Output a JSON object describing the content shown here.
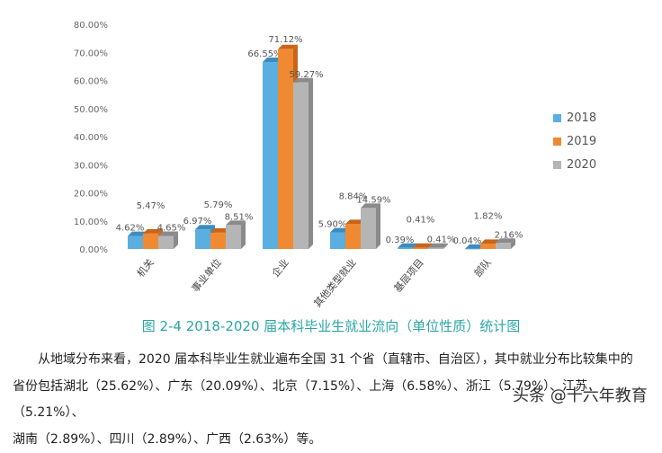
{
  "chart_data": {
    "type": "bar",
    "categories": [
      "机关",
      "事业单位",
      "企业",
      "其他类型就业",
      "基层项目",
      "部队"
    ],
    "series": [
      {
        "name": "2018",
        "color": "#5aaee0",
        "values": [
          4.62,
          6.97,
          66.55,
          5.9,
          0.39,
          0.04
        ]
      },
      {
        "name": "2019",
        "color": "#f08a32",
        "values": [
          5.47,
          5.79,
          71.12,
          8.84,
          0.41,
          1.82
        ]
      },
      {
        "name": "2020",
        "color": "#b5b5b5",
        "values": [
          4.65,
          8.51,
          59.27,
          14.59,
          0.41,
          2.16
        ]
      }
    ],
    "data_labels": [
      [
        "4.62%",
        "6.97%",
        "66.55%",
        "5.90%",
        "0.39%",
        "0.04%"
      ],
      [
        "5.47%",
        "5.79%",
        "71.12%",
        "8.84%",
        "0.41%",
        "1.82%"
      ],
      [
        "4.65%",
        "8.51%",
        "59.27%",
        "14.59%",
        "0.41%",
        "2.16%"
      ]
    ],
    "yticks": [
      "0.00%",
      "10.00%",
      "20.00%",
      "30.00%",
      "40.00%",
      "50.00%",
      "60.00%",
      "70.00%",
      "80.00%"
    ],
    "ylim": [
      0,
      80
    ],
    "grid": false,
    "legend": "right",
    "style": "3d-clustered-column"
  },
  "caption": "图 2-4   2018-2020 届本科毕业生就业流向（单位性质）统计图",
  "paragraph": {
    "line1": "从地域分布来看，2020 届本科毕业生就业遍布全国 31 个省（直辖市、自治区），其中就业分布比较集中的",
    "line2": "省份包括湖北（25.62%）、广东（20.09%）、北京（7.15%）、上海（6.58%）、浙江（5.79%）、江苏（5.21%）、",
    "line3": "湖南（2.89%）、四川（2.89%）、广西（2.63%）等。"
  },
  "watermark": "头条 @十六年教育"
}
